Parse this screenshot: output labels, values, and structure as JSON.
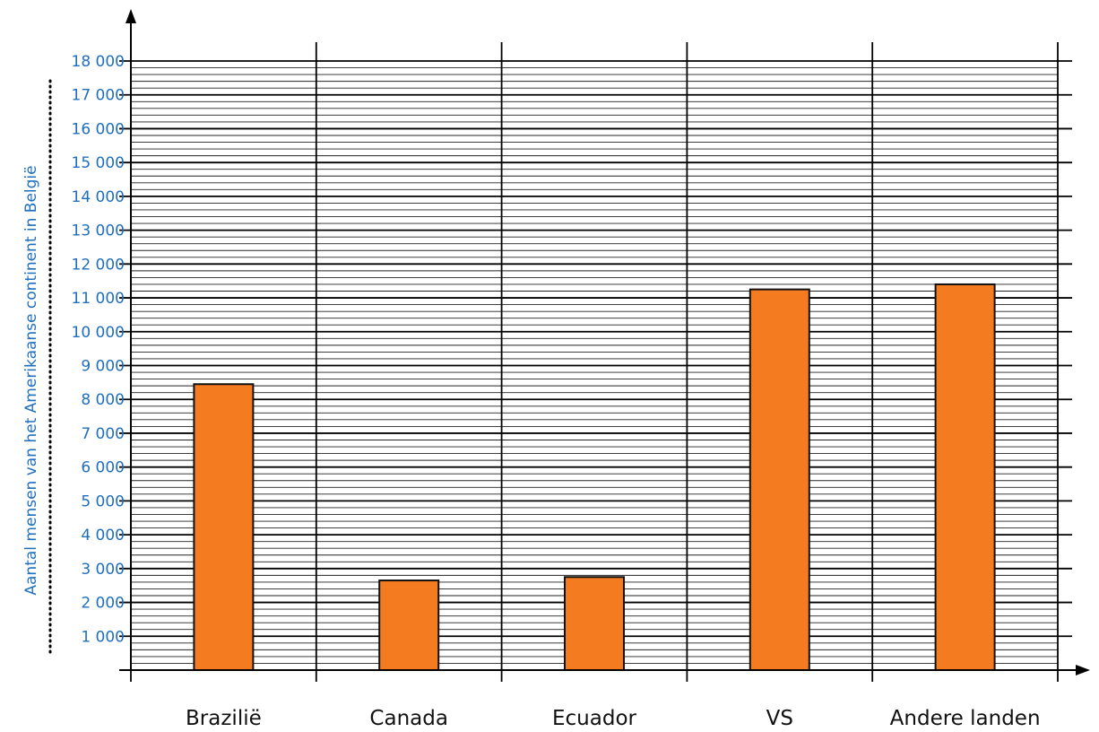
{
  "chart_data": {
    "type": "bar",
    "title": "",
    "xlabel": "",
    "ylabel": "Aantal mensen van het Amerikaanse continent in België",
    "categories": [
      "Brazilië",
      "Canada",
      "Ecuador",
      "VS",
      "Andere landen"
    ],
    "values": [
      8450,
      2650,
      2750,
      11250,
      11400
    ],
    "ylim": [
      0,
      18000
    ],
    "yticks": [
      1000,
      2000,
      3000,
      4000,
      5000,
      6000,
      7000,
      8000,
      9000,
      10000,
      11000,
      12000,
      13000,
      14000,
      15000,
      16000,
      17000,
      18000
    ],
    "ytick_labels": [
      "1 000",
      "2 000",
      "3 000",
      "4 000",
      "5 000",
      "6 000",
      "7 000",
      "8 000",
      "9 000",
      "10 000",
      "11 000",
      "12 000",
      "13 000",
      "14 000",
      "15 000",
      "16 000",
      "17 000",
      "18 000"
    ],
    "minor_grid_step": 200,
    "grid": true,
    "colors": {
      "bar": "#f47b20",
      "bar_stroke": "#111111",
      "axis": "#000000",
      "text_axis": "#1f6fbf",
      "text_category": "#111111"
    }
  }
}
